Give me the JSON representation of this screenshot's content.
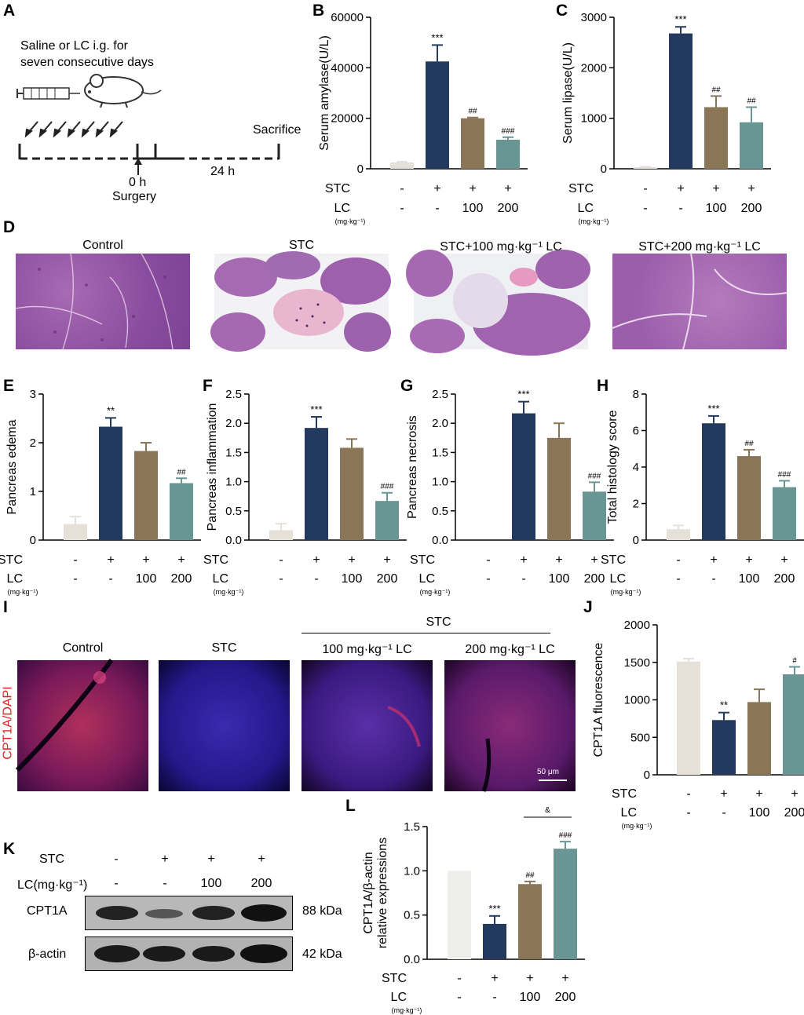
{
  "colors": {
    "control": "#e6e1d8",
    "stc": "#233a5e",
    "lc100": "#8a7557",
    "lc200": "#6a9595",
    "ctrl_L": "#eeeeea"
  },
  "panel_letters": {
    "a": "A",
    "b": "B",
    "c": "C",
    "d": "D",
    "e": "E",
    "f": "F",
    "g": "G",
    "h": "H",
    "i": "I",
    "j": "J",
    "k": "K",
    "l": "L"
  },
  "schematic": {
    "line1": "Saline or LC i.g. for",
    "line2": "seven consecutive days",
    "sacrifice": "Sacrifice",
    "zero_h": "0 h",
    "surgery": "Surgery",
    "hours24": "24 h"
  },
  "he_titles": [
    "Control",
    "STC",
    "STC+100 mg·kg⁻¹ LC",
    "STC+200 mg·kg⁻¹ LC"
  ],
  "if_titles": [
    "Control",
    "STC",
    "100 mg·kg⁻¹ LC",
    "200 mg·kg⁻¹ LC"
  ],
  "if_group": "STC",
  "if_ylabel": "CPT1A/DAPI",
  "scale_bar": "50 μm",
  "blot": {
    "stc_label": "STC",
    "lc_label": "LC(mg·kg⁻¹)",
    "stc_signs": [
      "-",
      "+",
      "+",
      "+"
    ],
    "lc_vals": [
      "-",
      "-",
      "100",
      "200"
    ],
    "band1": "CPT1A",
    "band2": "β-actin",
    "kda1": "88 kDa",
    "kda2": "42 kDa"
  },
  "chart_data": [
    {
      "panel": "B",
      "type": "bar",
      "ylabel": "Serum amylase(U/L)",
      "ylim": [
        0,
        60000
      ],
      "yticks": [
        0,
        20000,
        40000,
        60000
      ],
      "series": [
        {
          "values": [
            2500,
            42500,
            20000,
            11500
          ],
          "errors": [
            300,
            6500,
            300,
            1000
          ],
          "sig": [
            "",
            "***",
            "##",
            "###"
          ]
        }
      ],
      "stc": [
        "-",
        "+",
        "+",
        "+"
      ],
      "lc": [
        "-",
        "-",
        "100",
        "200"
      ],
      "unit": "(mg·kg⁻¹)"
    },
    {
      "panel": "C",
      "type": "bar",
      "ylabel": "Serum lipase(U/L)",
      "ylim": [
        0,
        3000
      ],
      "yticks": [
        0,
        1000,
        2000,
        3000
      ],
      "series": [
        {
          "values": [
            30,
            2680,
            1220,
            920
          ],
          "errors": [
            10,
            130,
            220,
            300
          ],
          "sig": [
            "",
            "***",
            "##",
            "##"
          ]
        }
      ],
      "stc": [
        "-",
        "+",
        "+",
        "+"
      ],
      "lc": [
        "-",
        "-",
        "100",
        "200"
      ],
      "unit": "(mg·kg⁻¹)"
    },
    {
      "panel": "E",
      "type": "bar",
      "ylabel": "Pancreas edema",
      "ylim": [
        0,
        3
      ],
      "yticks": [
        0,
        1,
        2,
        3
      ],
      "series": [
        {
          "values": [
            0.33,
            2.33,
            1.83,
            1.17
          ],
          "errors": [
            0.15,
            0.18,
            0.17,
            0.1
          ],
          "sig": [
            "",
            "**",
            "",
            "##"
          ]
        }
      ],
      "stc": [
        "-",
        "+",
        "+",
        "+"
      ],
      "lc": [
        "-",
        "-",
        "100",
        "200"
      ],
      "unit": "(mg·kg⁻¹)"
    },
    {
      "panel": "F",
      "type": "bar",
      "ylabel": "Pancreas inflammation",
      "ylim": [
        0,
        2.5
      ],
      "yticks": [
        0.0,
        0.5,
        1.0,
        1.5,
        2.0,
        2.5
      ],
      "series": [
        {
          "values": [
            0.17,
            1.92,
            1.58,
            0.67
          ],
          "errors": [
            0.11,
            0.19,
            0.15,
            0.14
          ],
          "sig": [
            "",
            "***",
            "",
            "###"
          ]
        }
      ],
      "stc": [
        "-",
        "+",
        "+",
        "+"
      ],
      "lc": [
        "-",
        "-",
        "100",
        "200"
      ],
      "unit": "(mg·kg⁻¹)"
    },
    {
      "panel": "G",
      "type": "bar",
      "ylabel": "Pancreas necrosis",
      "ylim": [
        0,
        2.5
      ],
      "yticks": [
        0.0,
        0.5,
        1.0,
        1.5,
        2.0,
        2.5
      ],
      "series": [
        {
          "values": [
            0,
            2.17,
            1.75,
            0.83
          ],
          "errors": [
            0,
            0.2,
            0.25,
            0.16
          ],
          "sig": [
            "",
            "***",
            "",
            "###"
          ]
        }
      ],
      "stc": [
        "-",
        "+",
        "+",
        "+"
      ],
      "lc": [
        "-",
        "-",
        "100",
        "200"
      ],
      "unit": "(mg·kg⁻¹)"
    },
    {
      "panel": "H",
      "type": "bar",
      "ylabel": "Total histology score",
      "ylim": [
        0,
        8
      ],
      "yticks": [
        0,
        2,
        4,
        6,
        8
      ],
      "series": [
        {
          "values": [
            0.6,
            6.4,
            4.6,
            2.9
          ],
          "errors": [
            0.2,
            0.4,
            0.35,
            0.35
          ],
          "sig": [
            "",
            "***",
            "##",
            "###"
          ]
        }
      ],
      "stc": [
        "-",
        "+",
        "+",
        "+"
      ],
      "lc": [
        "-",
        "-",
        "100",
        "200"
      ],
      "unit": "(mg·kg⁻¹)"
    },
    {
      "panel": "J",
      "type": "bar",
      "ylabel": "CPT1A fluorescence",
      "ylim": [
        0,
        2000
      ],
      "yticks": [
        0,
        500,
        1000,
        1500,
        2000
      ],
      "series": [
        {
          "values": [
            1510,
            730,
            970,
            1340
          ],
          "errors": [
            40,
            100,
            170,
            100
          ],
          "sig": [
            "",
            "**",
            "",
            "#"
          ]
        }
      ],
      "stc": [
        "-",
        "+",
        "+",
        "+"
      ],
      "lc": [
        "-",
        "-",
        "100",
        "200"
      ],
      "unit": "(mg·kg⁻¹)"
    },
    {
      "panel": "L",
      "type": "bar",
      "ylabel": "CPT1A/β-actin relative expressions",
      "ylim": [
        0,
        1.5
      ],
      "yticks": [
        0.0,
        0.5,
        1.0,
        1.5
      ],
      "series": [
        {
          "values": [
            1.0,
            0.4,
            0.85,
            1.25
          ],
          "errors": [
            0,
            0.09,
            0.03,
            0.08
          ],
          "sig": [
            "",
            "***",
            "##",
            "###"
          ]
        }
      ],
      "bracket": "&",
      "stc": [
        "-",
        "+",
        "+",
        "+"
      ],
      "lc": [
        "-",
        "-",
        "100",
        "200"
      ],
      "unit": "(mg·kg⁻¹)"
    }
  ]
}
